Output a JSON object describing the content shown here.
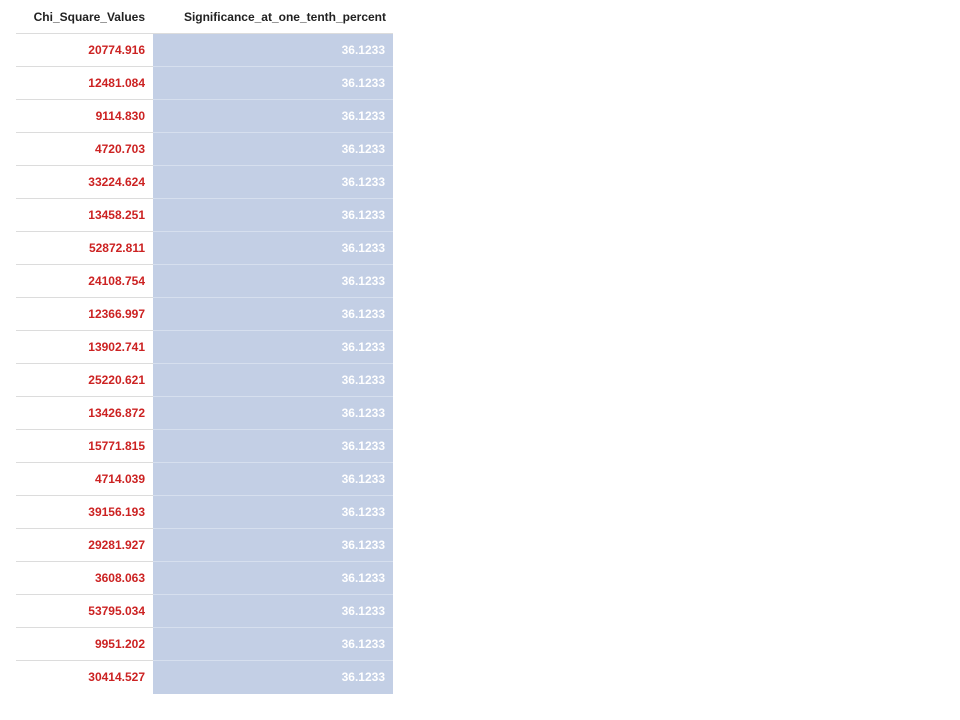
{
  "table": {
    "columns": [
      "Chi_Square_Values",
      "Significance_at_one_tenth_percent"
    ],
    "rows": [
      [
        "20774.916",
        "36.1233"
      ],
      [
        "12481.084",
        "36.1233"
      ],
      [
        "9114.830",
        "36.1233"
      ],
      [
        "4720.703",
        "36.1233"
      ],
      [
        "33224.624",
        "36.1233"
      ],
      [
        "13458.251",
        "36.1233"
      ],
      [
        "52872.811",
        "36.1233"
      ],
      [
        "24108.754",
        "36.1233"
      ],
      [
        "12366.997",
        "36.1233"
      ],
      [
        "13902.741",
        "36.1233"
      ],
      [
        "25220.621",
        "36.1233"
      ],
      [
        "13426.872",
        "36.1233"
      ],
      [
        "15771.815",
        "36.1233"
      ],
      [
        "4714.039",
        "36.1233"
      ],
      [
        "39156.193",
        "36.1233"
      ],
      [
        "29281.927",
        "36.1233"
      ],
      [
        "3608.063",
        "36.1233"
      ],
      [
        "53795.034",
        "36.1233"
      ],
      [
        "9951.202",
        "36.1233"
      ],
      [
        "30414.527",
        "36.1233"
      ]
    ]
  },
  "colors": {
    "chi_text": "#cc2222",
    "sig_background": "#c3cfe5",
    "sig_text": "#ffffff"
  }
}
